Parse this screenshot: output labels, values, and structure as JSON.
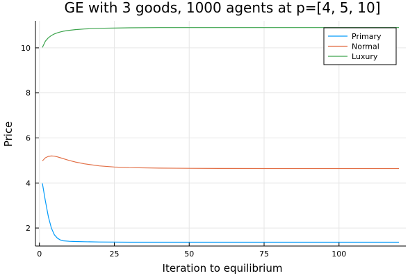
{
  "chart_data": {
    "type": "line",
    "title": "GE with 3 goods, 1000 agents at p=[4, 5, 10]",
    "xlabel": "Iteration to equilibrium",
    "ylabel": "Price",
    "xlim": [
      1,
      120
    ],
    "ylim": [
      1.2,
      11.2
    ],
    "xticks": [
      0,
      25,
      50,
      75,
      100
    ],
    "yticks": [
      2,
      4,
      6,
      8,
      10
    ],
    "grid": true,
    "legend_position": "top-right",
    "series": [
      {
        "name": "Primary",
        "color": "#009af9",
        "x": [
          1,
          2,
          3,
          4,
          5,
          6,
          7,
          8,
          10,
          12,
          15,
          20,
          25,
          30,
          40,
          50,
          60,
          80,
          100,
          120
        ],
        "y": [
          3.98,
          3.2,
          2.5,
          2.0,
          1.7,
          1.55,
          1.47,
          1.43,
          1.41,
          1.4,
          1.39,
          1.38,
          1.375,
          1.37,
          1.37,
          1.37,
          1.37,
          1.37,
          1.37,
          1.37
        ]
      },
      {
        "name": "Normal",
        "color": "#e26f46",
        "x": [
          1,
          2,
          3,
          4,
          5,
          6,
          7,
          8,
          10,
          12,
          15,
          20,
          25,
          30,
          40,
          50,
          60,
          80,
          100,
          120
        ],
        "y": [
          4.98,
          5.12,
          5.18,
          5.2,
          5.19,
          5.16,
          5.12,
          5.08,
          5.0,
          4.93,
          4.85,
          4.76,
          4.71,
          4.68,
          4.66,
          4.65,
          4.645,
          4.64,
          4.64,
          4.64
        ]
      },
      {
        "name": "Luxury",
        "color": "#3da44d",
        "x": [
          1,
          2,
          3,
          4,
          5,
          6,
          7,
          8,
          10,
          12,
          15,
          20,
          25,
          30,
          40,
          50,
          60,
          80,
          100,
          120
        ],
        "y": [
          10.02,
          10.3,
          10.45,
          10.55,
          10.62,
          10.67,
          10.71,
          10.74,
          10.78,
          10.81,
          10.84,
          10.87,
          10.88,
          10.89,
          10.9,
          10.9,
          10.9,
          10.9,
          10.9,
          10.9
        ]
      }
    ]
  }
}
